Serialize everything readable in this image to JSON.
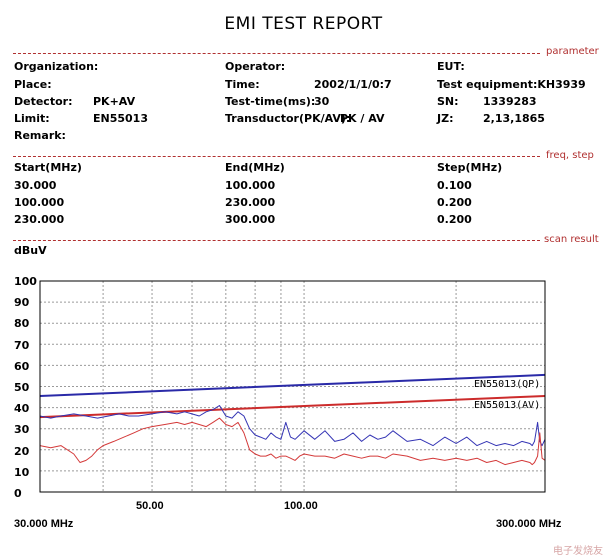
{
  "report": {
    "title": "EMI TEST REPORT"
  },
  "sections": {
    "parameter": "parameter",
    "freq_step": "freq, step",
    "scan_result": "scan result"
  },
  "params": {
    "organization_label": "Organization:",
    "place_label": "Place:",
    "detector_label": "Detector:",
    "detector_value": "PK+AV",
    "limit_label": "Limit:",
    "limit_value": "EN55013",
    "remark_label": "Remark:",
    "operator_label": "Operator:",
    "time_label": "Time:",
    "time_value": "2002/1/1/0:7",
    "testtime_label": "Test-time(ms):",
    "testtime_value": "30",
    "transductor_label": "Transductor(PK/AV):",
    "transductor_value": "PK  /  AV",
    "eut_label": "EUT:",
    "equipment_label": "Test equipment:KH3939",
    "sn_label": "SN:",
    "sn_value": "1339283",
    "jz_label": "JZ:",
    "jz_value": "2,13,1865"
  },
  "freq_table": {
    "headers": [
      "Start(MHz)",
      "End(MHz)",
      "Step(MHz)"
    ],
    "rows": [
      [
        "30.000",
        "100.000",
        "0.100"
      ],
      [
        "100.000",
        "230.000",
        "0.200"
      ],
      [
        "230.000",
        "300.000",
        "0.200"
      ]
    ]
  },
  "watermark": "电子发烧友",
  "chart_data": {
    "type": "line",
    "ylabel": "dBuV",
    "ylim": [
      0,
      100
    ],
    "y_ticks": [
      0,
      10,
      20,
      30,
      40,
      50,
      60,
      70,
      80,
      90,
      100
    ],
    "x_scale": "log",
    "xlim": [
      30,
      300
    ],
    "x_tick_labels": [
      "50.00",
      "100.00"
    ],
    "x_tick_values": [
      50,
      100
    ],
    "x_start_label": "30.000 MHz",
    "x_end_label": "300.000 MHz",
    "grid": true,
    "colors": {
      "qp_limit": "#2a2aa8",
      "av_limit": "#cc2b2b",
      "peak": "#3434b4",
      "average": "#d43a3a"
    },
    "series": [
      {
        "name": "EN55013(QP)",
        "type": "limit",
        "x": [
          30,
          300
        ],
        "y": [
          45.5,
          55.5
        ]
      },
      {
        "name": "EN55013(AV)",
        "type": "limit",
        "x": [
          30,
          300
        ],
        "y": [
          35.5,
          45.5
        ]
      },
      {
        "type": "peak",
        "x": [
          30,
          31.5,
          33,
          35,
          37,
          39,
          41,
          43,
          45,
          47,
          50,
          53,
          56,
          58,
          60,
          62,
          64,
          66,
          68,
          70,
          72,
          74,
          76,
          78,
          80,
          82,
          84,
          86,
          88,
          90,
          92,
          94,
          96,
          98,
          100,
          105,
          110,
          115,
          120,
          125,
          130,
          135,
          140,
          145,
          150,
          160,
          170,
          180,
          190,
          200,
          210,
          220,
          230,
          240,
          250,
          260,
          270,
          280,
          283,
          286,
          290,
          293,
          296,
          300
        ],
        "y": [
          36,
          35,
          36,
          37,
          36,
          35,
          36,
          37,
          36,
          36,
          37,
          38,
          37,
          38,
          37,
          36,
          38,
          39,
          41,
          36,
          35,
          38,
          36,
          30,
          27,
          26,
          25,
          28,
          26,
          25,
          33,
          26,
          25,
          27,
          29,
          25,
          29,
          24,
          25,
          28,
          24,
          27,
          25,
          26,
          29,
          24,
          25,
          22,
          26,
          23,
          26,
          22,
          24,
          22,
          23,
          22,
          24,
          23,
          22,
          24,
          33,
          24,
          22,
          25
        ]
      },
      {
        "type": "average",
        "x": [
          30,
          31.5,
          33,
          35,
          36,
          37,
          38,
          39,
          40,
          42,
          44,
          46,
          48,
          50,
          53,
          56,
          58,
          60,
          62,
          64,
          66,
          68,
          70,
          72,
          74,
          76,
          78,
          80,
          82,
          84,
          86,
          88,
          90,
          92,
          94,
          96,
          98,
          100,
          105,
          110,
          115,
          120,
          125,
          130,
          135,
          140,
          145,
          150,
          160,
          170,
          180,
          190,
          200,
          210,
          220,
          230,
          240,
          250,
          260,
          270,
          280,
          283,
          286,
          290,
          293,
          296,
          300
        ],
        "y": [
          22,
          21,
          22,
          18,
          14,
          15,
          17,
          20,
          22,
          24,
          26,
          28,
          30,
          31,
          32,
          33,
          32,
          33,
          32,
          31,
          33,
          35,
          32,
          31,
          33,
          28,
          20,
          18,
          17,
          17,
          18,
          16,
          17,
          17,
          16,
          15,
          17,
          18,
          17,
          17,
          16,
          18,
          17,
          16,
          17,
          17,
          16,
          18,
          17,
          15,
          16,
          15,
          16,
          15,
          16,
          14,
          15,
          13,
          14,
          15,
          14,
          13,
          14,
          17,
          28,
          16,
          15
        ]
      }
    ]
  }
}
